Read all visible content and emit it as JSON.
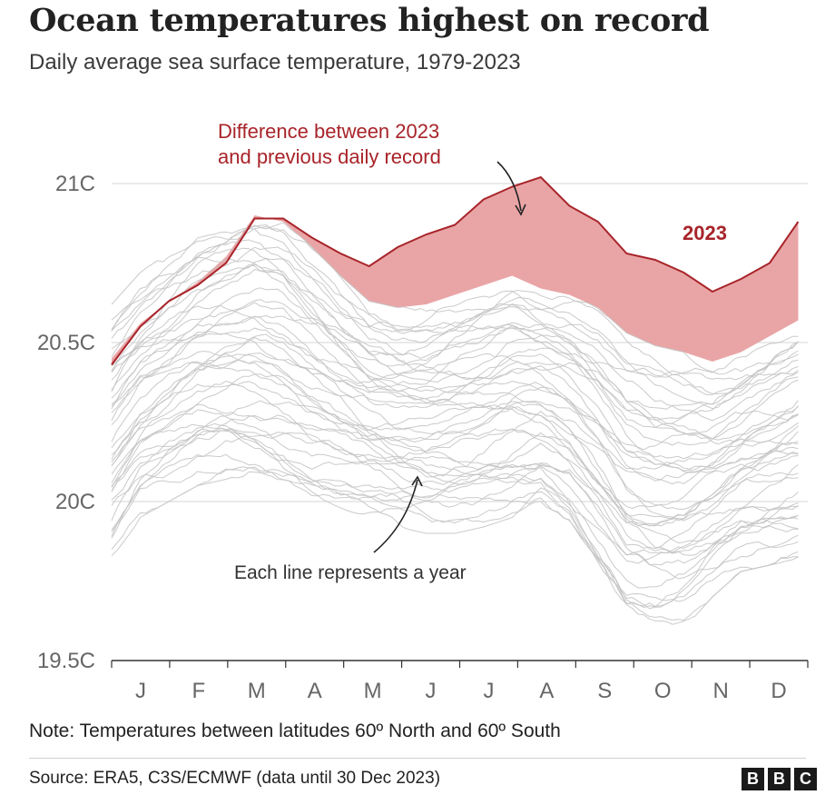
{
  "title": "Ocean temperatures highest on record",
  "subtitle": "Daily average sea surface temperature, 1979-2023",
  "note": "Note: Temperatures between latitudes 60º North and 60º South",
  "source": "Source: ERA5, C3S/ECMWF (data until 30 Dec 2023)",
  "logo": [
    "B",
    "B",
    "C"
  ],
  "colors": {
    "highlight_line": "#a8242a",
    "difference_fill": "#e9a5a6",
    "year_lines": "#c4c4c4",
    "gridline": "#dddddd"
  },
  "annotations": {
    "difference_line1": "Difference between 2023",
    "difference_line2": "and previous daily record",
    "each_line": "Each line represents a year",
    "highlight_label": "2023"
  },
  "chart_data": {
    "type": "line",
    "title": "Ocean temperatures highest on record",
    "subtitle": "Daily average sea surface temperature, 1979-2023",
    "ylim": [
      19.5,
      21.05
    ],
    "yticks": [
      19.5,
      20,
      20.5,
      21
    ],
    "ytick_labels": [
      "19.5C",
      "20C",
      "20.5C",
      "21C"
    ],
    "xlim": [
      0,
      365
    ],
    "x_categories": [
      "J",
      "F",
      "M",
      "A",
      "M",
      "J",
      "J",
      "A",
      "S",
      "O",
      "N",
      "D"
    ],
    "grid": true,
    "x": [
      0,
      15,
      30,
      45,
      60,
      75,
      90,
      105,
      120,
      135,
      150,
      165,
      180,
      195,
      210,
      225,
      240,
      255,
      270,
      285,
      300,
      315,
      330,
      345,
      360
    ],
    "series_2023": {
      "name": "2023",
      "values": [
        20.43,
        20.55,
        20.63,
        20.68,
        20.75,
        20.89,
        20.89,
        20.83,
        20.78,
        20.74,
        20.8,
        20.84,
        20.87,
        20.95,
        20.99,
        21.02,
        20.93,
        20.88,
        20.78,
        20.76,
        20.72,
        20.66,
        20.7,
        20.75,
        20.88
      ]
    },
    "previous_record": {
      "values": [
        20.45,
        20.56,
        20.63,
        20.69,
        20.77,
        20.9,
        20.88,
        20.8,
        20.71,
        20.63,
        20.61,
        20.62,
        20.65,
        20.68,
        20.71,
        20.67,
        20.65,
        20.61,
        20.53,
        20.49,
        20.47,
        20.44,
        20.47,
        20.52,
        20.57
      ]
    },
    "envelope": {
      "upper": [
        20.62,
        20.72,
        20.79,
        20.86,
        20.89,
        20.92,
        20.89,
        20.8,
        20.71,
        20.63,
        20.61,
        20.62,
        20.65,
        20.68,
        20.71,
        20.67,
        20.65,
        20.61,
        20.53,
        20.49,
        20.47,
        20.44,
        20.47,
        20.52,
        20.57
      ],
      "lower": [
        19.8,
        19.95,
        20.0,
        20.05,
        20.07,
        20.06,
        20.02,
        19.98,
        19.96,
        19.94,
        19.92,
        19.9,
        19.9,
        19.92,
        19.95,
        19.98,
        19.9,
        19.75,
        19.6,
        19.57,
        19.6,
        19.7,
        19.78,
        19.8,
        19.82
      ]
    }
  }
}
